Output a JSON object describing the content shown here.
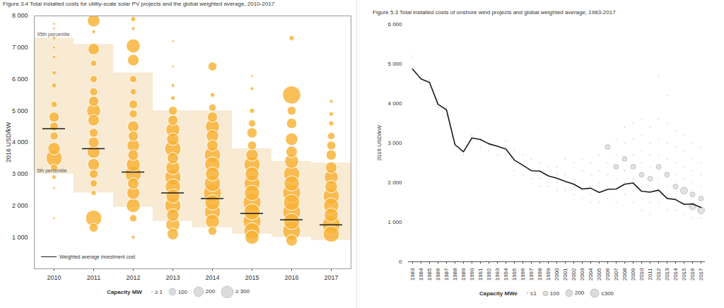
{
  "chart_data": [
    {
      "type": "bubble",
      "title": "Figure 3.4 Total installed costs for utility-scale solar PV projects and the global weighted average, 2010-2017",
      "ylabel": "2016 USD/kW",
      "categories": [
        2010,
        2011,
        2012,
        2013,
        2014,
        2015,
        2016,
        2017
      ],
      "ylim": [
        0,
        8000
      ],
      "yticks": [
        {
          "value": 1000,
          "label": "1 000"
        },
        {
          "value": 2000,
          "label": "2 000"
        },
        {
          "value": 3000,
          "label": "3 000"
        },
        {
          "value": 4000,
          "label": "4 000"
        },
        {
          "value": 5000,
          "label": "5 000"
        },
        {
          "value": 6000,
          "label": "6 000"
        },
        {
          "value": 7000,
          "label": "7 000"
        },
        {
          "value": 8000,
          "label": "8 000"
        }
      ],
      "grid": false,
      "series": [
        {
          "name": "Weighted average investment cost",
          "type": "tick",
          "color": "#1a1a1a",
          "values": [
            4430,
            3800,
            3060,
            2400,
            2220,
            1750,
            1550,
            1390
          ]
        }
      ],
      "percentile_band": {
        "color": "#f4dcb6",
        "upper": [
          7300,
          7100,
          6200,
          5000,
          5000,
          3800,
          3400,
          3350
        ],
        "lower": [
          3000,
          2400,
          1950,
          1500,
          1300,
          1100,
          1000,
          900
        ],
        "upper_label": "95th percentile",
        "lower_label": "5th percentile"
      },
      "projects": {
        "color": "#f8b133",
        "values": [
          [
            7750,
            7600,
            7300,
            7000,
            6700,
            6200,
            5800,
            5200,
            4800,
            4500,
            4200,
            3800,
            3500,
            3200,
            2900,
            2550,
            1600
          ],
          [
            7850,
            7500,
            6950,
            6500,
            6000,
            5600,
            5300,
            5000,
            4700,
            4300,
            4000,
            3700,
            3300,
            3000,
            2700,
            2400,
            1600,
            1300
          ],
          [
            7900,
            7600,
            7050,
            6600,
            6000,
            5600,
            5200,
            4900,
            4500,
            4200,
            3900,
            3600,
            3300,
            3000,
            2700,
            2400,
            2000,
            1600,
            1000
          ],
          [
            7200,
            6400,
            5800,
            5400,
            5000,
            4700,
            4400,
            4100,
            3800,
            3500,
            3200,
            2900,
            2600,
            2300,
            2000,
            1700,
            1400,
            1100
          ],
          [
            6400,
            5500,
            5100,
            4800,
            4500,
            4200,
            3900,
            3600,
            3300,
            3000,
            2700,
            2400,
            2100,
            1800,
            1500,
            1200
          ],
          [
            6100,
            5700,
            5000,
            4600,
            4300,
            3900,
            3600,
            3300,
            3000,
            2700,
            2400,
            2100,
            1800,
            1500,
            1200,
            1000
          ],
          [
            7300,
            5500,
            5000,
            4600,
            4100,
            3700,
            3400,
            3000,
            2700,
            2400,
            2100,
            1800,
            1500,
            1200,
            900
          ],
          [
            5300,
            4900,
            4600,
            4200,
            3900,
            3600,
            3200,
            2900,
            2600,
            2300,
            2000,
            1700,
            1400,
            1100
          ]
        ],
        "sizes": [
          [
            5,
            5,
            10,
            8,
            10,
            15,
            20,
            30,
            80,
            60,
            50,
            120,
            200,
            40,
            15,
            5,
            5
          ],
          [
            120,
            10,
            100,
            30,
            40,
            50,
            80,
            150,
            100,
            60,
            90,
            130,
            110,
            60,
            40,
            20,
            200,
            60
          ],
          [
            20,
            10,
            150,
            100,
            40,
            30,
            60,
            50,
            100,
            80,
            120,
            90,
            150,
            200,
            100,
            130,
            150,
            40,
            10
          ],
          [
            5,
            5,
            10,
            15,
            60,
            80,
            150,
            120,
            200,
            100,
            150,
            200,
            180,
            150,
            200,
            120,
            150,
            100
          ],
          [
            60,
            15,
            40,
            80,
            150,
            120,
            100,
            200,
            180,
            150,
            200,
            250,
            180,
            200,
            150,
            60
          ],
          [
            5,
            10,
            20,
            40,
            80,
            60,
            120,
            200,
            150,
            200,
            180,
            250,
            200,
            250,
            200,
            150
          ],
          [
            20,
            250,
            60,
            80,
            120,
            100,
            150,
            200,
            180,
            250,
            200,
            250,
            200,
            250,
            100
          ],
          [
            10,
            15,
            20,
            40,
            60,
            80,
            100,
            150,
            120,
            200,
            180,
            150,
            250,
            200
          ]
        ]
      },
      "size_legend": {
        "title": "Capacity MW",
        "values": [
          1,
          100,
          200,
          300
        ],
        "labels": [
          "≥ 1",
          "100",
          "200",
          "≥ 300"
        ]
      }
    },
    {
      "type": "line",
      "title": "Figure 5.3 Total installed costs of onshore wind projects and global weighted average, 1983-2017",
      "ylabel": "2016 USD/kW",
      "categories": [
        1983,
        1984,
        1985,
        1986,
        1987,
        1988,
        1989,
        1990,
        1991,
        1992,
        1993,
        1994,
        1995,
        1996,
        1997,
        1998,
        1999,
        2000,
        2001,
        2002,
        2003,
        2004,
        2005,
        2006,
        2007,
        2008,
        2009,
        2010,
        2011,
        2012,
        2013,
        2014,
        2015,
        2016,
        2017
      ],
      "ylim": [
        0,
        6000
      ],
      "yticks": [
        0,
        {
          "value": 1000,
          "label": "1 000"
        },
        {
          "value": 2000,
          "label": "2 000"
        },
        {
          "value": 3000,
          "label": "3 000"
        },
        {
          "value": 4000,
          "label": "4 000"
        },
        {
          "value": 5000,
          "label": "5 000"
        },
        {
          "value": 6000,
          "label": "6 000"
        }
      ],
      "grid": false,
      "series": [
        {
          "type": "line",
          "color": "#1a1a1a",
          "values": [
            4870,
            4620,
            4530,
            3980,
            3840,
            2960,
            2780,
            3130,
            3090,
            2980,
            2920,
            2850,
            2570,
            2440,
            2300,
            2290,
            2170,
            2110,
            2030,
            1960,
            1840,
            1860,
            1750,
            1830,
            1840,
            1960,
            1990,
            1780,
            1760,
            1810,
            1600,
            1570,
            1450,
            1460,
            1370
          ]
        }
      ],
      "projects": {
        "color": "#d6d6d6",
        "values": [
          [
            5200,
            4900
          ],
          [
            4700,
            4500
          ],
          [
            4600,
            4400
          ],
          [
            4100,
            3900
          ],
          [
            3900,
            3700
          ],
          [
            3000,
            2900
          ],
          [
            2800,
            2700
          ],
          [
            3200,
            3000
          ],
          [
            3100,
            2900
          ],
          [
            3000,
            2800
          ],
          [
            2950,
            2700
          ],
          [
            3050,
            2900,
            2700
          ],
          [
            2800,
            2500,
            2300
          ],
          [
            2700,
            2400,
            2200
          ],
          [
            2600,
            2300,
            2100
          ],
          [
            2500,
            2300,
            2100,
            1900
          ],
          [
            2400,
            2200,
            2000,
            1900
          ],
          [
            2400,
            2200,
            2000,
            1800
          ],
          [
            2600,
            2200,
            2000,
            1800
          ],
          [
            2500,
            2100,
            1900,
            1700
          ],
          [
            2600,
            2300,
            2000,
            1800,
            1600
          ],
          [
            2500,
            2200,
            1900,
            1700,
            1500
          ],
          [
            2700,
            2300,
            2000,
            1800,
            1500
          ],
          [
            2900,
            2500,
            2200,
            1900,
            1600
          ],
          [
            3100,
            2700,
            2400,
            2100,
            1800,
            1500
          ],
          [
            3400,
            3000,
            2600,
            2300,
            2000,
            1700
          ],
          [
            3500,
            3100,
            2700,
            2400,
            2100,
            1800,
            1500
          ],
          [
            3600,
            3200,
            2800,
            2500,
            2200,
            1900,
            1600,
            1300
          ],
          [
            3400,
            3000,
            2700,
            2400,
            2100,
            1800,
            1500,
            1200
          ],
          [
            4700,
            3600,
            3100,
            2700,
            2400,
            2100,
            1800,
            1500
          ],
          [
            4200,
            3500,
            3000,
            2600,
            2200,
            1900,
            1600,
            1300
          ],
          [
            3300,
            2900,
            2500,
            2200,
            1900,
            1600,
            1300
          ],
          [
            3200,
            2800,
            2400,
            2100,
            1800,
            1500,
            1200
          ],
          [
            3000,
            2600,
            2300,
            2000,
            1700,
            1400,
            1100
          ],
          [
            2900,
            2500,
            2200,
            1900,
            1600,
            1300,
            1100
          ]
        ],
        "sizes": [
          [
            1,
            1
          ],
          [
            1,
            1
          ],
          [
            1,
            1
          ],
          [
            1,
            1
          ],
          [
            1,
            1
          ],
          [
            1,
            1
          ],
          [
            1,
            1
          ],
          [
            1,
            1
          ],
          [
            1,
            1
          ],
          [
            1,
            1
          ],
          [
            1,
            1
          ],
          [
            1,
            1,
            1
          ],
          [
            1,
            1,
            1
          ],
          [
            1,
            1,
            1
          ],
          [
            1,
            1,
            1
          ],
          [
            1,
            1,
            1,
            1
          ],
          [
            1,
            1,
            1,
            1
          ],
          [
            1,
            1,
            1,
            1
          ],
          [
            1,
            1,
            1,
            1
          ],
          [
            1,
            1,
            1,
            1
          ],
          [
            1,
            1,
            1,
            1,
            1
          ],
          [
            1,
            1,
            1,
            1,
            1
          ],
          [
            1,
            1,
            1,
            1,
            1
          ],
          [
            100,
            1,
            1,
            1,
            1
          ],
          [
            1,
            1,
            100,
            1,
            1,
            1
          ],
          [
            1,
            1,
            100,
            1,
            1,
            1
          ],
          [
            1,
            1,
            1,
            100,
            1,
            1,
            1
          ],
          [
            1,
            1,
            1,
            1,
            100,
            1,
            1,
            1
          ],
          [
            1,
            1,
            1,
            1,
            100,
            1,
            1,
            1
          ],
          [
            1,
            1,
            1,
            1,
            100,
            1,
            1,
            1
          ],
          [
            1,
            1,
            1,
            1,
            100,
            1,
            1,
            1
          ],
          [
            1,
            1,
            1,
            1,
            100,
            1,
            1
          ],
          [
            1,
            1,
            1,
            1,
            200,
            1,
            1
          ],
          [
            1,
            1,
            1,
            1,
            100,
            200,
            1
          ],
          [
            1,
            1,
            1,
            1,
            100,
            200,
            1
          ]
        ]
      },
      "size_legend": {
        "title": "Capacity MWe",
        "values": [
          1,
          100,
          200,
          300
        ],
        "labels": [
          "≤1",
          "100",
          "200",
          "≤300"
        ]
      }
    }
  ]
}
